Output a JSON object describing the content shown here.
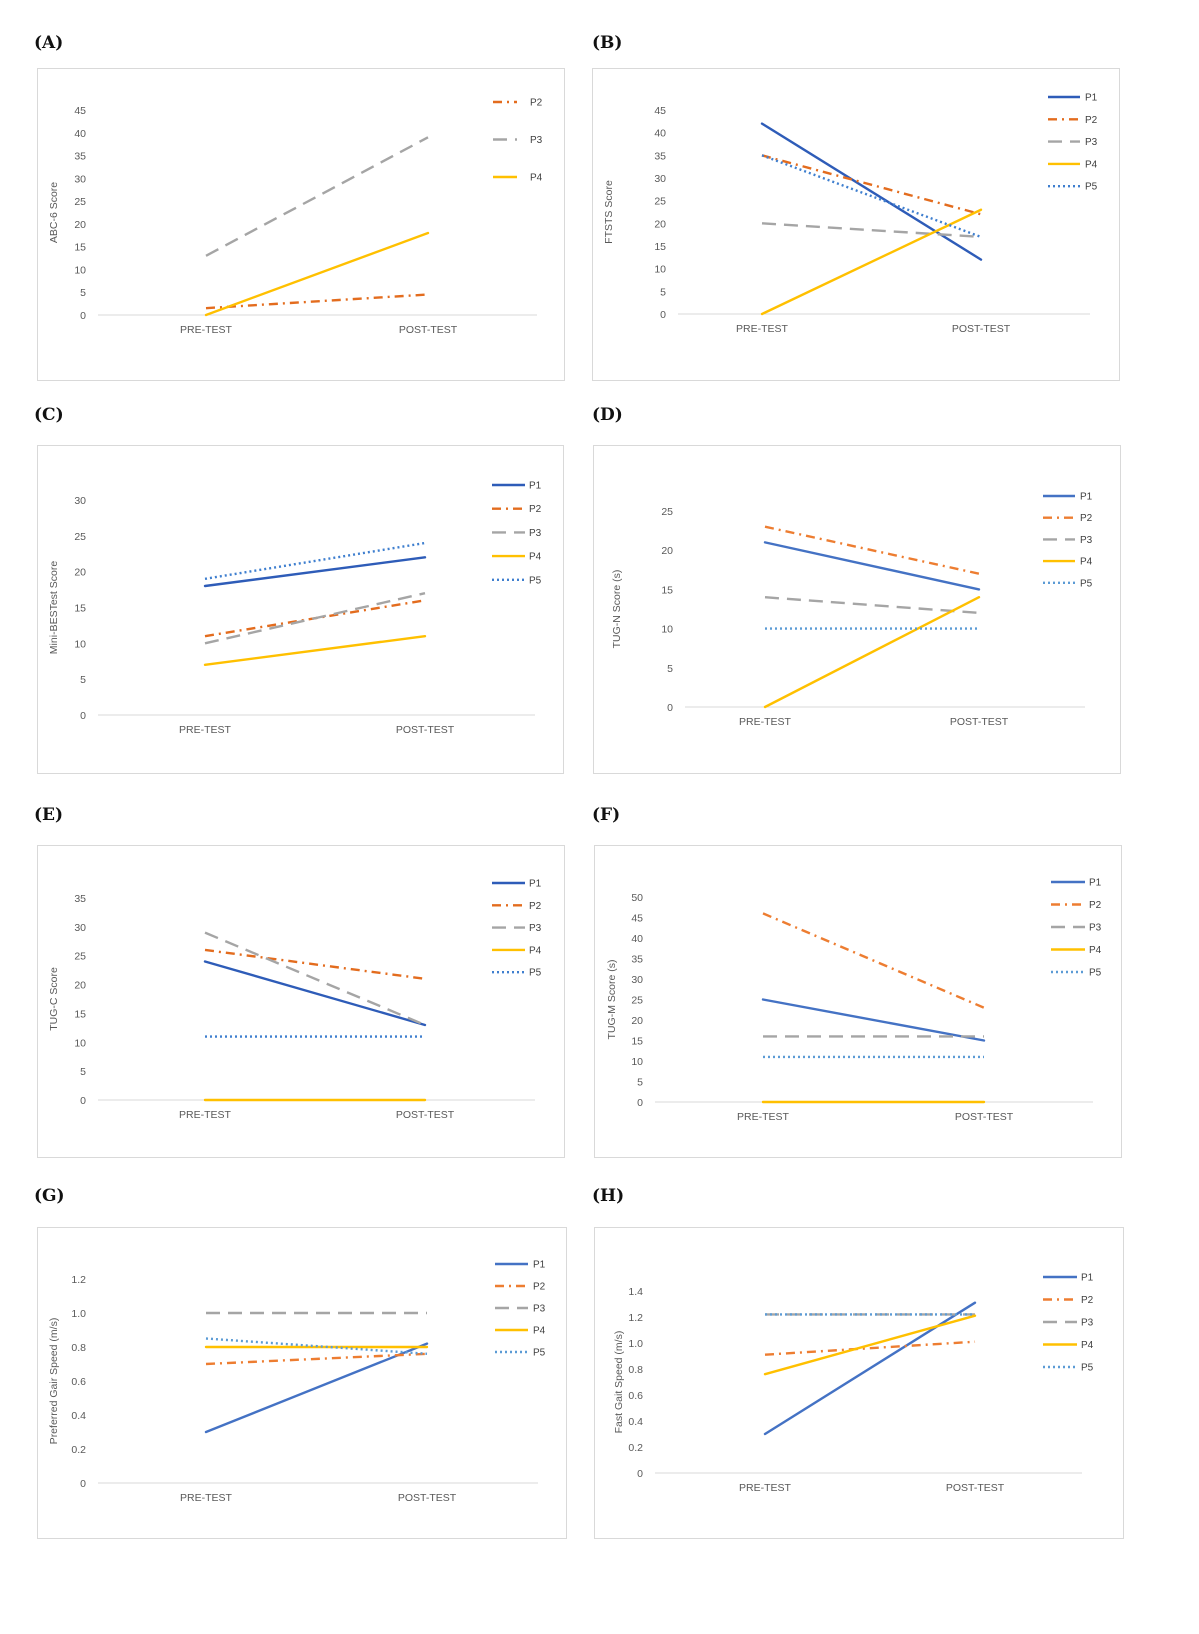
{
  "chart_data": [
    {
      "panel": "(A)",
      "type": "line",
      "ylabel": "ABC-6 Score",
      "categories": [
        "PRE-TEST",
        "POST-TEST"
      ],
      "yticks": [
        "0",
        "5",
        "10",
        "15",
        "20",
        "25",
        "30",
        "35",
        "40",
        "45"
      ],
      "ylim": [
        0,
        45
      ],
      "legend": "right",
      "series": [
        {
          "name": "P2",
          "values": [
            1.5,
            4.5
          ],
          "color": "#e36c1e",
          "style": "dash-dot"
        },
        {
          "name": "P3",
          "values": [
            13,
            39
          ],
          "color": "#a5a5a5",
          "style": "dash"
        },
        {
          "name": "P4",
          "values": [
            0,
            18
          ],
          "color": "#ffc000",
          "style": "solid"
        }
      ]
    },
    {
      "panel": "(B)",
      "type": "line",
      "ylabel": "FTSTS Score",
      "categories": [
        "PRE-TEST",
        "POST-TEST"
      ],
      "yticks": [
        "0",
        "5",
        "10",
        "15",
        "20",
        "25",
        "30",
        "35",
        "40",
        "45"
      ],
      "ylim": [
        0,
        45
      ],
      "legend": "right",
      "series": [
        {
          "name": "P1",
          "values": [
            42,
            12
          ],
          "color": "#2e5cb8",
          "style": "solid"
        },
        {
          "name": "P2",
          "values": [
            35,
            22
          ],
          "color": "#e36c1e",
          "style": "dash-dot"
        },
        {
          "name": "P3",
          "values": [
            20,
            17
          ],
          "color": "#a5a5a5",
          "style": "dash"
        },
        {
          "name": "P4",
          "values": [
            0,
            23
          ],
          "color": "#ffc000",
          "style": "solid"
        },
        {
          "name": "P5",
          "values": [
            35,
            17
          ],
          "color": "#3f7fcf",
          "style": "dot"
        }
      ]
    },
    {
      "panel": "(C)",
      "type": "line",
      "ylabel": "Mini-BESTest Score",
      "categories": [
        "PRE-TEST",
        "POST-TEST"
      ],
      "yticks": [
        "0",
        "5",
        "10",
        "15",
        "20",
        "25",
        "30"
      ],
      "ylim": [
        0,
        30
      ],
      "legend": "right",
      "series": [
        {
          "name": "P1",
          "values": [
            18,
            22
          ],
          "color": "#2e5cb8",
          "style": "solid"
        },
        {
          "name": "P2",
          "values": [
            11,
            16
          ],
          "color": "#e36c1e",
          "style": "dash-dot"
        },
        {
          "name": "P3",
          "values": [
            10,
            17
          ],
          "color": "#a5a5a5",
          "style": "dash"
        },
        {
          "name": "P4",
          "values": [
            7,
            11
          ],
          "color": "#ffc000",
          "style": "solid"
        },
        {
          "name": "P5",
          "values": [
            19,
            24
          ],
          "color": "#3f7fcf",
          "style": "dot"
        }
      ]
    },
    {
      "panel": "(D)",
      "type": "line",
      "ylabel": "TUG-N Score (s)",
      "categories": [
        "PRE-TEST",
        "POST-TEST"
      ],
      "yticks": [
        "0",
        "5",
        "10",
        "15",
        "20",
        "25"
      ],
      "ylim": [
        0,
        25
      ],
      "legend": "right",
      "series": [
        {
          "name": "P1",
          "values": [
            21,
            15
          ],
          "color": "#4472c4",
          "style": "solid"
        },
        {
          "name": "P2",
          "values": [
            23,
            17
          ],
          "color": "#ed7d31",
          "style": "dash-dot"
        },
        {
          "name": "P3",
          "values": [
            14,
            12
          ],
          "color": "#a5a5a5",
          "style": "dash"
        },
        {
          "name": "P4",
          "values": [
            0,
            14
          ],
          "color": "#ffc000",
          "style": "solid"
        },
        {
          "name": "P5",
          "values": [
            10,
            10
          ],
          "color": "#5b9bd5",
          "style": "dot"
        }
      ]
    },
    {
      "panel": "(E)",
      "type": "line",
      "ylabel": "TUG-C Score",
      "categories": [
        "PRE-TEST",
        "POST-TEST"
      ],
      "yticks": [
        "0",
        "5",
        "10",
        "15",
        "20",
        "25",
        "30",
        "35"
      ],
      "ylim": [
        0,
        35
      ],
      "legend": "right",
      "series": [
        {
          "name": "P1",
          "values": [
            24,
            13
          ],
          "color": "#2e5cb8",
          "style": "solid"
        },
        {
          "name": "P2",
          "values": [
            26,
            21
          ],
          "color": "#e36c1e",
          "style": "dash-dot"
        },
        {
          "name": "P3",
          "values": [
            29,
            13
          ],
          "color": "#a5a5a5",
          "style": "dash"
        },
        {
          "name": "P4",
          "values": [
            0,
            0
          ],
          "color": "#ffc000",
          "style": "solid"
        },
        {
          "name": "P5",
          "values": [
            11,
            11
          ],
          "color": "#3f7fcf",
          "style": "dot"
        }
      ]
    },
    {
      "panel": "(F)",
      "type": "line",
      "ylabel": "TUG-M Score (s)",
      "categories": [
        "PRE-TEST",
        "POST-TEST"
      ],
      "yticks": [
        "0",
        "5",
        "10",
        "15",
        "20",
        "25",
        "30",
        "35",
        "40",
        "45",
        "50"
      ],
      "ylim": [
        0,
        50
      ],
      "legend": "right",
      "series": [
        {
          "name": "P1",
          "values": [
            25,
            15
          ],
          "color": "#4472c4",
          "style": "solid"
        },
        {
          "name": "P2",
          "values": [
            46,
            23
          ],
          "color": "#ed7d31",
          "style": "dash-dot"
        },
        {
          "name": "P3",
          "values": [
            16,
            16
          ],
          "color": "#a5a5a5",
          "style": "dash"
        },
        {
          "name": "P4",
          "values": [
            0,
            0
          ],
          "color": "#ffc000",
          "style": "solid"
        },
        {
          "name": "P5",
          "values": [
            11,
            11
          ],
          "color": "#5b9bd5",
          "style": "dot"
        }
      ]
    },
    {
      "panel": "(G)",
      "type": "line",
      "ylabel": "Preferred Gair Speed (m/s)",
      "categories": [
        "PRE-TEST",
        "POST-TEST"
      ],
      "yticks": [
        "0",
        "0.2",
        "0.4",
        "0.6",
        "0.8",
        "1.0",
        "1.2"
      ],
      "ylim": [
        0,
        1.2
      ],
      "legend": "right",
      "series": [
        {
          "name": "P1",
          "values": [
            0.3,
            0.82
          ],
          "color": "#4472c4",
          "style": "solid"
        },
        {
          "name": "P2",
          "values": [
            0.7,
            0.76
          ],
          "color": "#ed7d31",
          "style": "dash-dot"
        },
        {
          "name": "P3",
          "values": [
            1.0,
            1.0
          ],
          "color": "#a5a5a5",
          "style": "dash"
        },
        {
          "name": "P4",
          "values": [
            0.8,
            0.8
          ],
          "color": "#ffc000",
          "style": "solid"
        },
        {
          "name": "P5",
          "values": [
            0.85,
            0.76
          ],
          "color": "#5b9bd5",
          "style": "dot"
        }
      ]
    },
    {
      "panel": "(H)",
      "type": "line",
      "ylabel": "Fast Gait Speed (m/s)",
      "categories": [
        "PRE-TEST",
        "POST-TEST"
      ],
      "yticks": [
        "0",
        "0.2",
        "0.4",
        "0.6",
        "0.8",
        "1.0",
        "1.2",
        "1.4"
      ],
      "ylim": [
        0,
        1.4
      ],
      "legend": "right",
      "series": [
        {
          "name": "P1",
          "values": [
            0.3,
            1.31
          ],
          "color": "#4472c4",
          "style": "solid"
        },
        {
          "name": "P2",
          "values": [
            0.91,
            1.01
          ],
          "color": "#ed7d31",
          "style": "dash-dot"
        },
        {
          "name": "P3",
          "values": [
            1.22,
            1.22
          ],
          "color": "#a5a5a5",
          "style": "dash"
        },
        {
          "name": "P4",
          "values": [
            0.76,
            1.21
          ],
          "color": "#ffc000",
          "style": "solid"
        },
        {
          "name": "P5",
          "values": [
            1.22,
            1.22
          ],
          "color": "#5b9bd5",
          "style": "dot"
        }
      ]
    }
  ]
}
